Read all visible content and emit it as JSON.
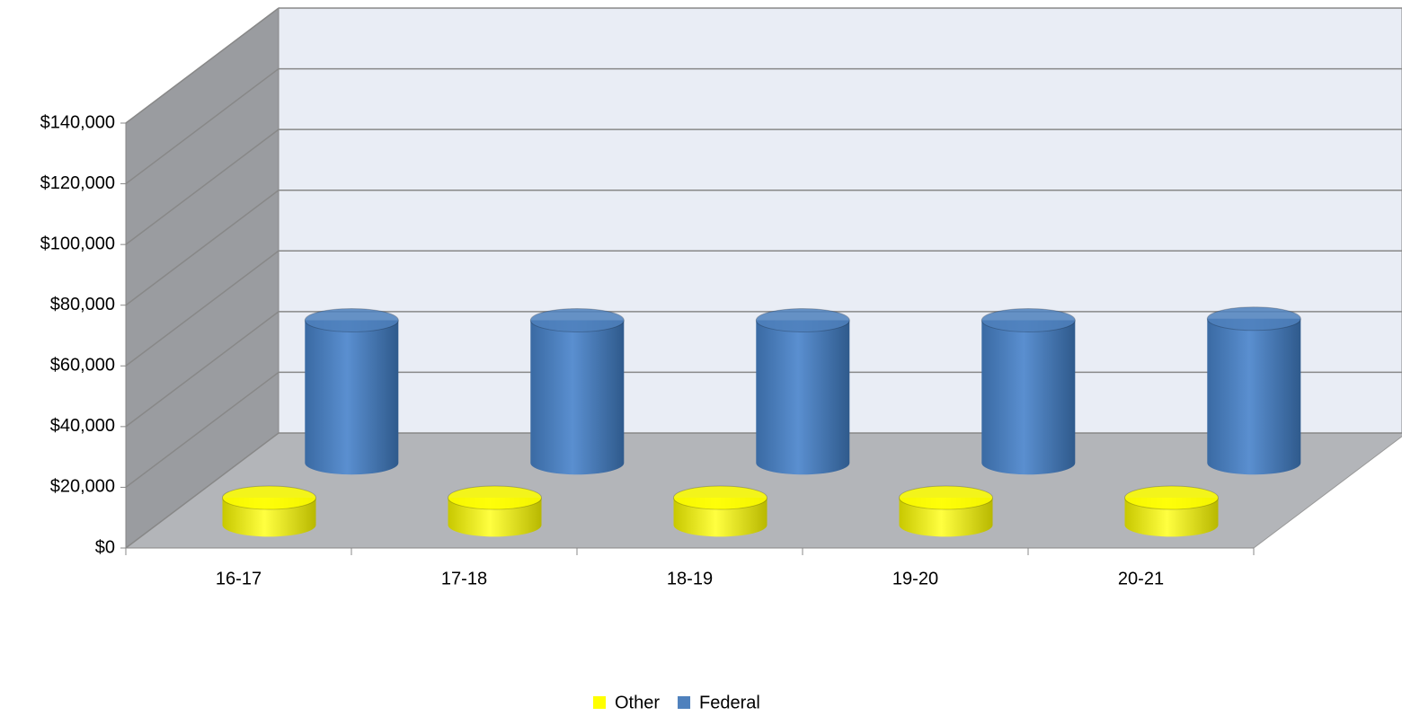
{
  "chart_data": {
    "type": "bar3d",
    "categories": [
      "16-17",
      "17-18",
      "18-19",
      "19-20",
      "20-21"
    ],
    "series": [
      {
        "name": "Other",
        "color": "#ffff00",
        "values": [
          9000,
          9000,
          9000,
          9000,
          9000
        ]
      },
      {
        "name": "Federal",
        "color": "#4f81bd",
        "values": [
          47000,
          47000,
          47000,
          47000,
          47500
        ]
      }
    ],
    "ylim": [
      0,
      140000
    ],
    "yticks": [
      {
        "value": 0,
        "label": "$0"
      },
      {
        "value": 20000,
        "label": "$20,000"
      },
      {
        "value": 40000,
        "label": "$40,000"
      },
      {
        "value": 60000,
        "label": "$60,000"
      },
      {
        "value": 80000,
        "label": "$80,000"
      },
      {
        "value": 100000,
        "label": "$100,000"
      },
      {
        "value": 120000,
        "label": "$120,000"
      },
      {
        "value": 140000,
        "label": "$140,000"
      }
    ],
    "grid": true,
    "legend": "bottom"
  }
}
